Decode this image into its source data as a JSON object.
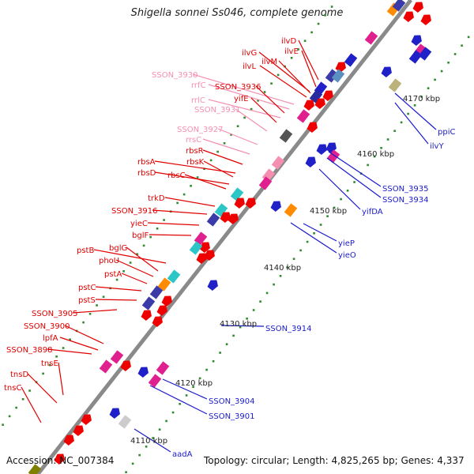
{
  "title": "Shigella sonnei Ss046, complete genome",
  "accession_label": "Accession:",
  "accession": "NC_007384",
  "summary": "Topology: circular; Length: 4,825,265 bp; Genes: 4,337",
  "colors": {
    "backbone": "#8a8a8a",
    "forward_label": "#e00000",
    "rna_label": "#f48fb1",
    "reverse_label": "#1a1acc",
    "scale": "#222222",
    "tick": "#2e8b2e"
  },
  "scale_labels": [
    "4110 kbp",
    "4120 kbp",
    "4130 kbp",
    "4140 kbp",
    "4150 kbp",
    "4160 kbp",
    "4170 kbp"
  ],
  "left_labels": [
    {
      "text": "ilvD",
      "color": "red"
    },
    {
      "text": "ilvE",
      "color": "red"
    },
    {
      "text": "ilvG",
      "color": "red"
    },
    {
      "text": "ilvM",
      "color": "red"
    },
    {
      "text": "ilvL",
      "color": "red"
    },
    {
      "text": "SSON_3930",
      "color": "pink"
    },
    {
      "text": "rrfC",
      "color": "pink"
    },
    {
      "text": "SSON_3936",
      "color": "red"
    },
    {
      "text": "rrlC",
      "color": "pink"
    },
    {
      "text": "yifE",
      "color": "red"
    },
    {
      "text": "SSON_3931",
      "color": "pink"
    },
    {
      "text": "SSON_3927",
      "color": "pink"
    },
    {
      "text": "rrsC",
      "color": "pink"
    },
    {
      "text": "rbsR",
      "color": "red"
    },
    {
      "text": "rbsA",
      "color": "red"
    },
    {
      "text": "rbsK",
      "color": "red"
    },
    {
      "text": "rbsD",
      "color": "red"
    },
    {
      "text": "rbsC",
      "color": "red"
    },
    {
      "text": "trkD",
      "color": "red"
    },
    {
      "text": "SSON_3916",
      "color": "red"
    },
    {
      "text": "yieC",
      "color": "red"
    },
    {
      "text": "bglF",
      "color": "red"
    },
    {
      "text": "pstB",
      "color": "red"
    },
    {
      "text": "bglG",
      "color": "red"
    },
    {
      "text": "phoU",
      "color": "red"
    },
    {
      "text": "pstA",
      "color": "red"
    },
    {
      "text": "pstC",
      "color": "red"
    },
    {
      "text": "pstS",
      "color": "red"
    },
    {
      "text": "SSON_3905",
      "color": "red"
    },
    {
      "text": "SSON_3900",
      "color": "red"
    },
    {
      "text": "lpfA",
      "color": "red"
    },
    {
      "text": "SSON_3898",
      "color": "red"
    },
    {
      "text": "tnsE",
      "color": "red"
    },
    {
      "text": "tnsD",
      "color": "red"
    },
    {
      "text": "tnsC",
      "color": "red"
    }
  ],
  "right_labels": [
    {
      "text": "ppiC"
    },
    {
      "text": "ilvY"
    },
    {
      "text": "SSON_3935"
    },
    {
      "text": "SSON_3934"
    },
    {
      "text": "yifDA"
    },
    {
      "text": "yieP"
    },
    {
      "text": "yieO"
    },
    {
      "text": "SSON_3914"
    },
    {
      "text": "SSON_3904"
    },
    {
      "text": "SSON_3901"
    },
    {
      "text": "aadA"
    }
  ]
}
